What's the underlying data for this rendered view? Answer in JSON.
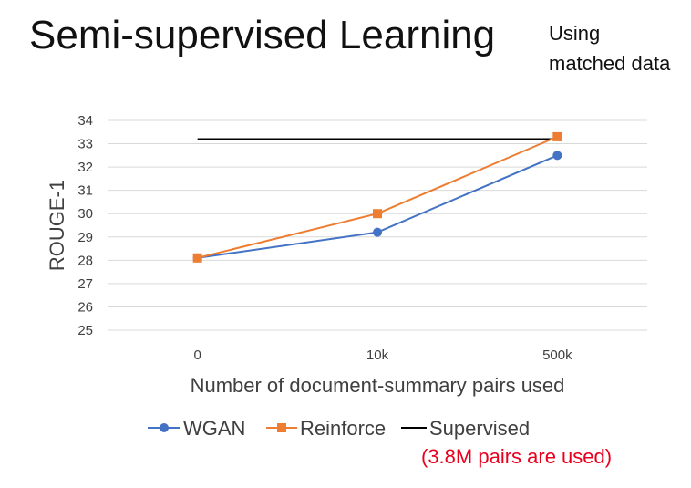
{
  "slide": {
    "title": "Semi-supervised Learning",
    "side_note_lines": [
      "Using",
      "matched data"
    ],
    "red_note": "(3.8M pairs are used)"
  },
  "chart_data": {
    "type": "line",
    "title": "",
    "xlabel": "Number of document-summary pairs used",
    "ylabel": "ROUGE-1",
    "categories": [
      "0",
      "10k",
      "500k"
    ],
    "ylim": [
      25,
      34
    ],
    "yticks": [
      25,
      26,
      27,
      28,
      29,
      30,
      31,
      32,
      33,
      34
    ],
    "grid": true,
    "legend_placement": "bottom",
    "series": [
      {
        "name": "WGAN",
        "values": [
          28.1,
          29.2,
          32.5
        ],
        "color": "#4472c4",
        "marker": "circle"
      },
      {
        "name": "Reinforce",
        "values": [
          28.1,
          30.0,
          33.3
        ],
        "color": "#ed7d31",
        "marker": "square"
      },
      {
        "name": "Supervised",
        "constant": 33.2,
        "color": "#000000",
        "marker": "none"
      }
    ]
  }
}
